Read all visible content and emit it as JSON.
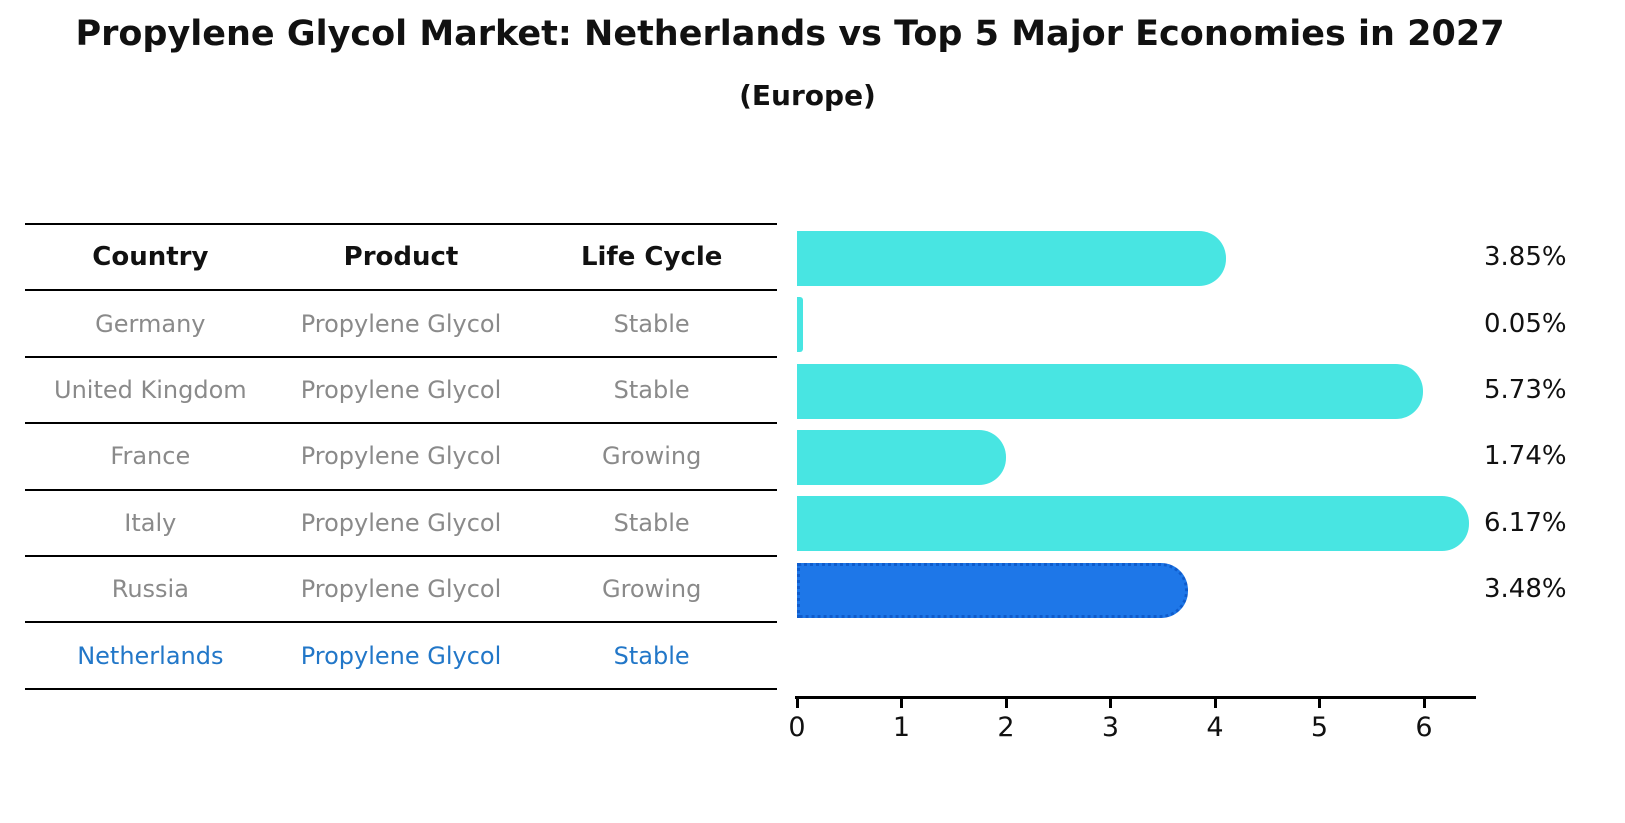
{
  "title": "Propylene Glycol Market: Netherlands vs Top 5 Major Economies in 2027",
  "subtitle": "(Europe)",
  "table": {
    "headers": [
      "Country",
      "Product",
      "Life Cycle"
    ],
    "rows": [
      {
        "country": "Germany",
        "product": "Propylene Glycol",
        "life_cycle": "Stable",
        "highlight": false
      },
      {
        "country": "United Kingdom",
        "product": "Propylene Glycol",
        "life_cycle": "Stable",
        "highlight": false
      },
      {
        "country": "France",
        "product": "Propylene Glycol",
        "life_cycle": "Growing",
        "highlight": false
      },
      {
        "country": "Italy",
        "product": "Propylene Glycol",
        "life_cycle": "Stable",
        "highlight": false
      },
      {
        "country": "Russia",
        "product": "Propylene Glycol",
        "life_cycle": "Growing",
        "highlight": false
      },
      {
        "country": "Netherlands",
        "product": "Propylene Glycol",
        "life_cycle": "Stable",
        "highlight": true
      }
    ]
  },
  "chart_data": {
    "type": "bar",
    "orientation": "horizontal",
    "title": "Propylene Glycol Market: Netherlands vs Top 5 Major Economies in 2027",
    "subtitle": "(Europe)",
    "categories": [
      "Germany",
      "United Kingdom",
      "France",
      "Italy",
      "Russia",
      "Netherlands"
    ],
    "values": [
      3.85,
      0.05,
      5.73,
      1.74,
      6.17,
      3.48
    ],
    "value_labels": [
      "3.85%",
      "0.05%",
      "5.73%",
      "1.74%",
      "6.17%",
      "3.48%"
    ],
    "xticks": [
      "0",
      "1",
      "2",
      "3",
      "4",
      "5",
      "6"
    ],
    "xlim": [
      0,
      6.5
    ],
    "grid": false,
    "legend": false,
    "highlight_index": 5,
    "bar_color": "#48e5e2",
    "highlight_bar_color": "#1e77e8",
    "highlight_edge_color": "#0f5ccc",
    "highlight_text_color": "#2277c8"
  }
}
